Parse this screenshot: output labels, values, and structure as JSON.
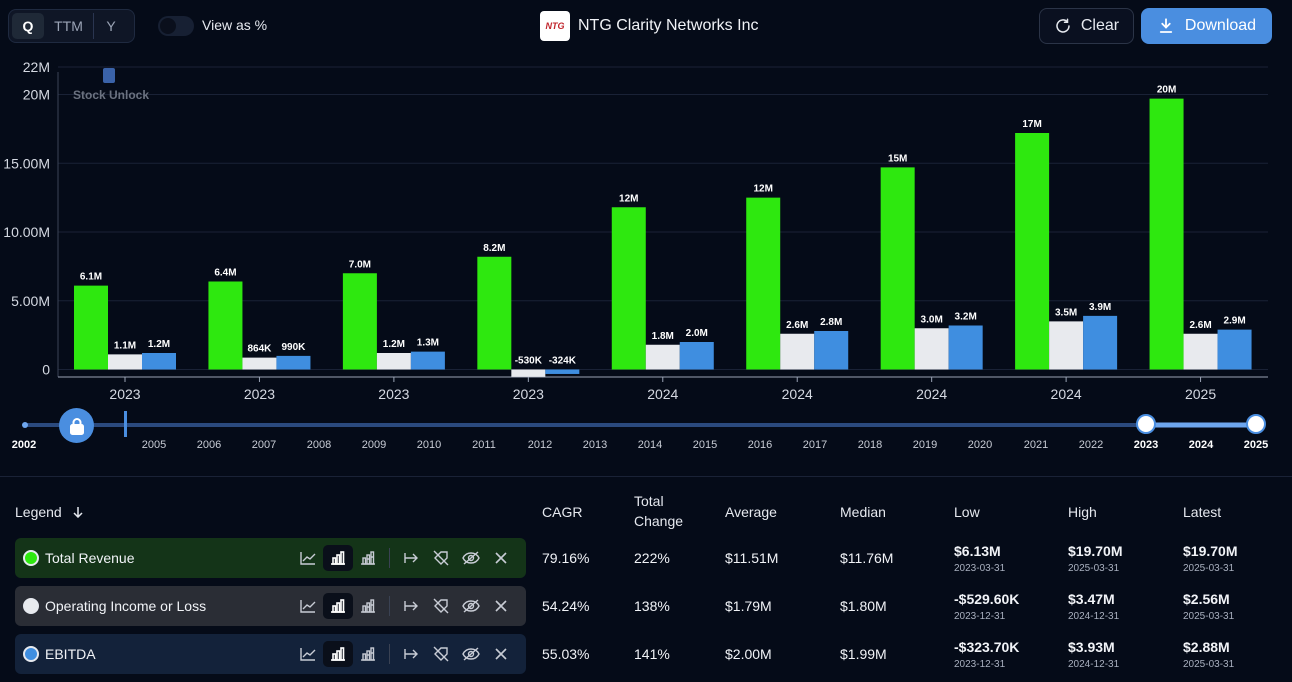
{
  "toolbar": {
    "period_options": [
      "Q",
      "TTM",
      "Y"
    ],
    "view_as_percent_label": "View as %",
    "company_name": "NTG Clarity Networks Inc",
    "logo_text": "NTG",
    "clear_label": "Clear",
    "download_label": "Download"
  },
  "watermark": "Stock Unlock",
  "colors": {
    "revenue": "#2ee80f",
    "operating": "#e8eaee",
    "ebitda": "#3f8ee0",
    "accent": "#4a8ee0",
    "background": "#050b18"
  },
  "chart_data": {
    "type": "bar",
    "categories": [
      "2023",
      "2023",
      "2023",
      "2023",
      "2024",
      "2024",
      "2024",
      "2024",
      "2025"
    ],
    "series": [
      {
        "name": "Total Revenue",
        "values": [
          6.1,
          6.4,
          7.0,
          8.2,
          11.8,
          12.5,
          14.7,
          17.2,
          19.7
        ],
        "labels": [
          "6.1M",
          "6.4M",
          "7.0M",
          "8.2M",
          "12M",
          "12M",
          "15M",
          "17M",
          "20M"
        ]
      },
      {
        "name": "Operating Income or Loss",
        "values": [
          1.1,
          0.864,
          1.2,
          -0.53,
          1.8,
          2.6,
          3.0,
          3.5,
          2.6
        ],
        "labels": [
          "1.1M",
          "864K",
          "1.2M",
          "-530K",
          "1.8M",
          "2.6M",
          "3.0M",
          "3.5M",
          "2.6M"
        ]
      },
      {
        "name": "EBITDA",
        "values": [
          1.2,
          0.99,
          1.3,
          -0.324,
          2.0,
          2.8,
          3.2,
          3.9,
          2.9
        ],
        "labels": [
          "1.2M",
          "990K",
          "1.3M",
          "-324K",
          "2.0M",
          "2.8M",
          "3.2M",
          "3.9M",
          "2.9M"
        ]
      }
    ],
    "yticks": [
      0,
      5,
      10,
      15,
      20,
      22
    ],
    "ytick_labels": [
      "0",
      "5.00M",
      "10.00M",
      "15.00M",
      "20M",
      "22M"
    ],
    "ylim": [
      -0.4,
      22
    ],
    "ylabel": "",
    "xlabel": "",
    "title": "",
    "grid": true
  },
  "timeline": {
    "years": [
      "2002",
      "2005",
      "2006",
      "2007",
      "2008",
      "2009",
      "2010",
      "2011",
      "2012",
      "2013",
      "2014",
      "2015",
      "2016",
      "2017",
      "2018",
      "2019",
      "2020",
      "2021",
      "2022",
      "2023",
      "2024",
      "2025"
    ],
    "range_start": "2023",
    "range_end": "2025"
  },
  "table": {
    "headers": {
      "legend": "Legend",
      "cagr": "CAGR",
      "total_change_1": "Total",
      "total_change_2": "Change",
      "average": "Average",
      "median": "Median",
      "low": "Low",
      "high": "High",
      "latest": "Latest"
    },
    "rows": [
      {
        "name": "Total Revenue",
        "cagr": "79.16%",
        "total_change": "222%",
        "average": "$11.51M",
        "median": "$11.76M",
        "low": "$6.13M",
        "low_date": "2023-03-31",
        "high": "$19.70M",
        "high_date": "2025-03-31",
        "latest": "$19.70M",
        "latest_date": "2025-03-31"
      },
      {
        "name": "Operating Income or Loss",
        "cagr": "54.24%",
        "total_change": "138%",
        "average": "$1.79M",
        "median": "$1.80M",
        "low": "-$529.60K",
        "low_date": "2023-12-31",
        "high": "$3.47M",
        "high_date": "2024-12-31",
        "latest": "$2.56M",
        "latest_date": "2025-03-31"
      },
      {
        "name": "EBITDA",
        "cagr": "55.03%",
        "total_change": "141%",
        "average": "$2.00M",
        "median": "$1.99M",
        "low": "-$323.70K",
        "low_date": "2023-12-31",
        "high": "$3.93M",
        "high_date": "2024-12-31",
        "latest": "$2.88M",
        "latest_date": "2025-03-31"
      }
    ]
  }
}
